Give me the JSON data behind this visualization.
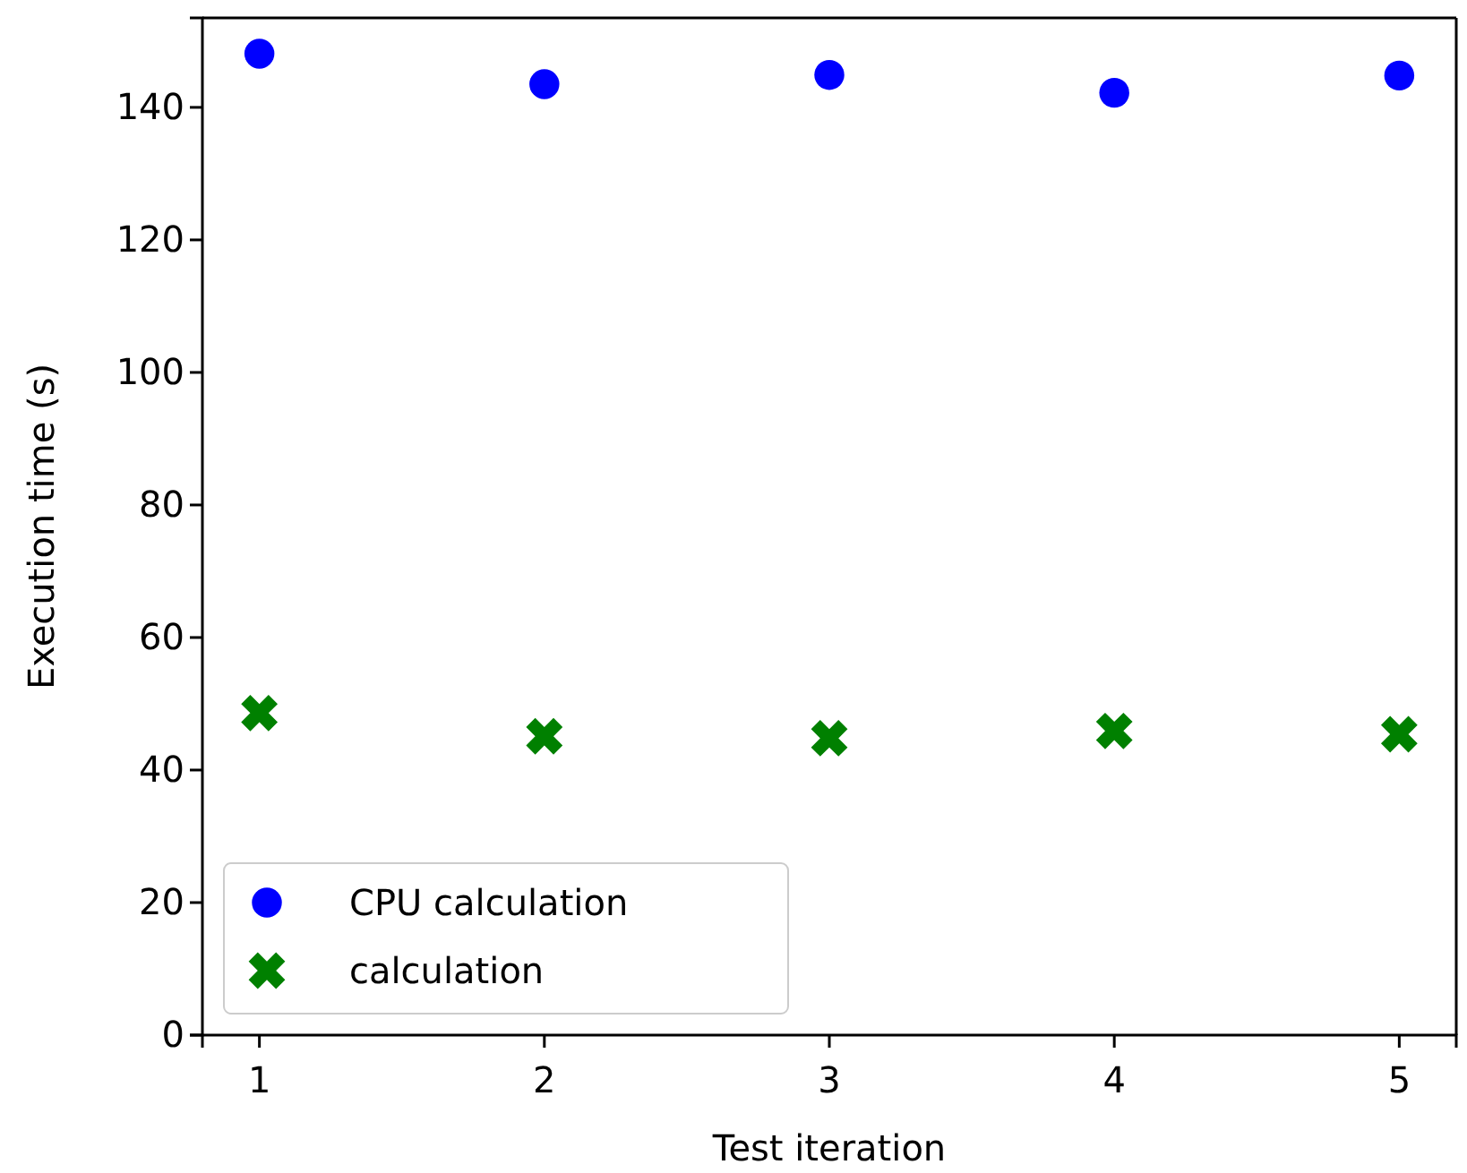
{
  "chart_data": {
    "type": "scatter",
    "xlabel": "Test iteration",
    "ylabel": "Execution time (s)",
    "x": [
      1,
      2,
      3,
      4,
      5
    ],
    "xlim": [
      0.8,
      5.2
    ],
    "xticks": [
      1,
      2,
      3,
      4,
      5
    ],
    "ylim": [
      0,
      153.5
    ],
    "yticks": [
      0,
      20,
      40,
      60,
      80,
      100,
      120,
      140
    ],
    "legend": "bottom left",
    "grid": false,
    "series": [
      {
        "name": "CPU calculation",
        "color": "#0000ff",
        "marker": "circle",
        "values": [
          148.1,
          143.5,
          144.9,
          142.2,
          144.8
        ]
      },
      {
        "name": "calculation",
        "color": "#008000",
        "marker": "cross",
        "values": [
          48.6,
          45.1,
          44.8,
          45.9,
          45.4
        ]
      }
    ]
  }
}
